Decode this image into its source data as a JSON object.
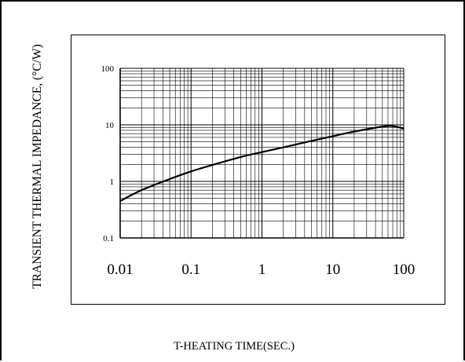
{
  "chart_data": {
    "type": "line",
    "title": "",
    "xlabel": "T-HEATING TIME(SEC.)",
    "ylabel": "TRANSIENT  THERMAL IMPEDANCE, (°C/W)",
    "x_scale": "log",
    "y_scale": "log",
    "xlim": [
      0.01,
      100
    ],
    "ylim": [
      0.1,
      100
    ],
    "x_ticks": [
      "0.01",
      "0.1",
      "1",
      "10",
      "100"
    ],
    "y_ticks": [
      "0.1",
      "1",
      "10",
      "100"
    ],
    "grid": true,
    "series": [
      {
        "x": [
          0.01,
          0.02,
          0.05,
          0.1,
          0.2,
          0.5,
          1,
          2,
          5,
          10,
          20,
          50,
          70,
          100
        ],
        "y": [
          0.45,
          0.7,
          1.1,
          1.5,
          1.95,
          2.7,
          3.3,
          4.0,
          5.2,
          6.3,
          7.6,
          9.3,
          9.5,
          8.6
        ]
      }
    ],
    "line_color": "#000000"
  }
}
